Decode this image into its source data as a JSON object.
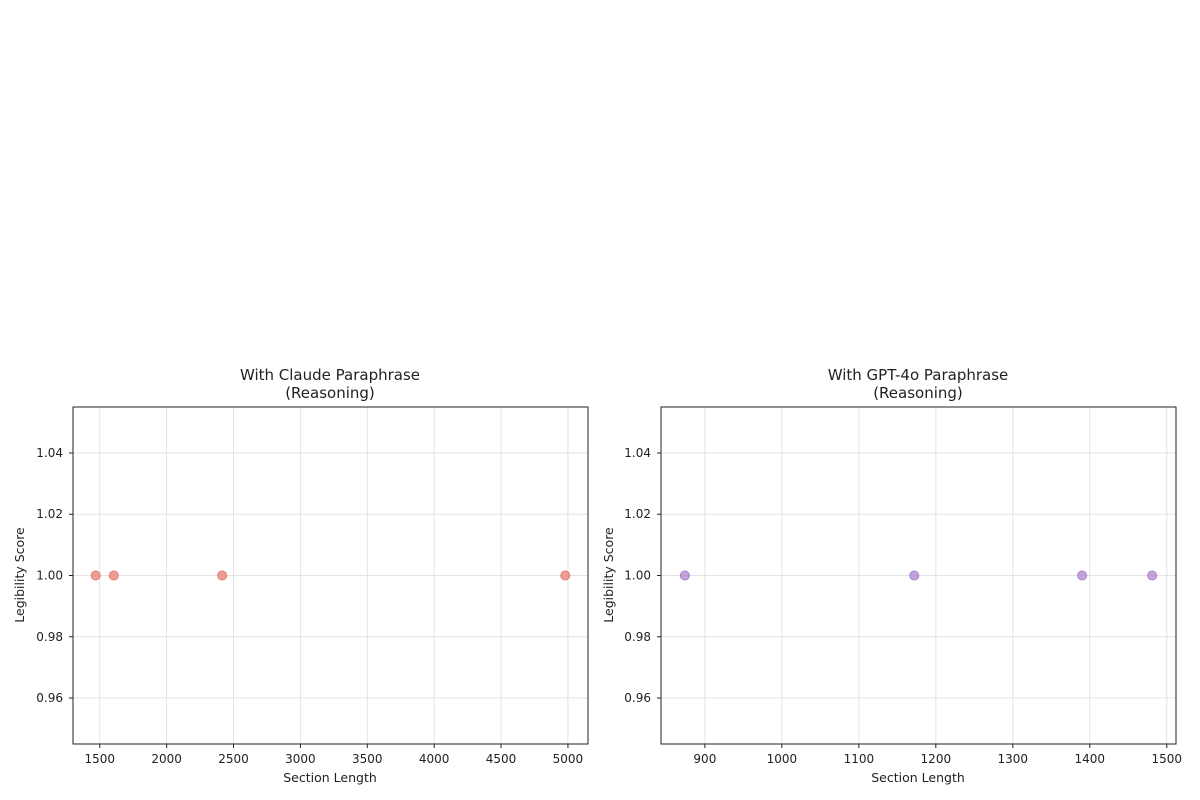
{
  "chart_data": [
    {
      "type": "scatter",
      "title_line1": "With Claude Paraphrase",
      "title_line2": "(Reasoning)",
      "xlabel": "Section Length",
      "ylabel": "Legibility Score",
      "xlim": [
        1300,
        5150
      ],
      "ylim": [
        0.945,
        1.055
      ],
      "xticks": [
        1500,
        2000,
        2500,
        3000,
        3500,
        4000,
        4500,
        5000
      ],
      "xtick_labels": [
        "1500",
        "2000",
        "2500",
        "3000",
        "3500",
        "4000",
        "4500",
        "5000"
      ],
      "yticks": [
        0.96,
        0.98,
        1.0,
        1.02,
        1.04
      ],
      "ytick_labels": [
        "0.96",
        "0.98",
        "1.00",
        "1.02",
        "1.04"
      ],
      "grid": true,
      "color": "#e8786a",
      "points": [
        {
          "x": 1470,
          "y": 1.0
        },
        {
          "x": 1605,
          "y": 1.0
        },
        {
          "x": 2415,
          "y": 1.0
        },
        {
          "x": 4980,
          "y": 1.0
        }
      ]
    },
    {
      "type": "scatter",
      "title_line1": "With GPT-4o Paraphrase",
      "title_line2": "(Reasoning)",
      "xlabel": "Section Length",
      "ylabel": "Legibility Score",
      "xlim": [
        843,
        1512
      ],
      "ylim": [
        0.945,
        1.055
      ],
      "xticks": [
        900,
        1000,
        1100,
        1200,
        1300,
        1400,
        1500
      ],
      "xtick_labels": [
        "900",
        "1000",
        "1100",
        "1200",
        "1300",
        "1400",
        "1500"
      ],
      "yticks": [
        0.96,
        0.98,
        1.0,
        1.02,
        1.04
      ],
      "ytick_labels": [
        "0.96",
        "0.98",
        "1.00",
        "1.02",
        "1.04"
      ],
      "grid": true,
      "color": "#a97fcc",
      "points": [
        {
          "x": 874,
          "y": 1.0
        },
        {
          "x": 1172,
          "y": 1.0
        },
        {
          "x": 1390,
          "y": 1.0
        },
        {
          "x": 1481,
          "y": 1.0
        }
      ]
    }
  ]
}
